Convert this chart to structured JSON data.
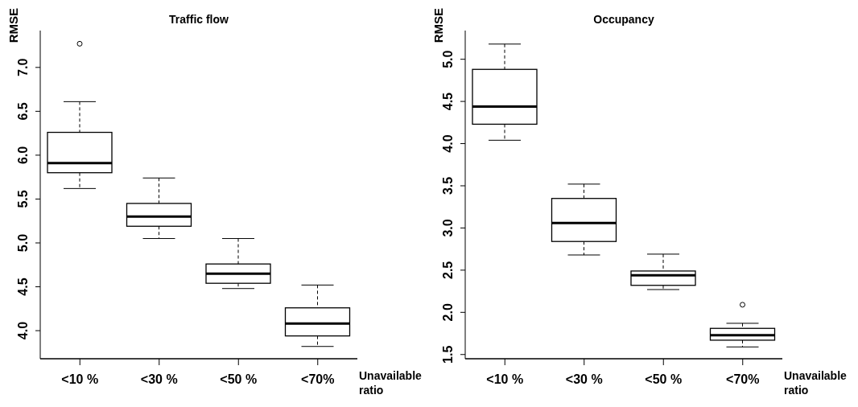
{
  "chart_data": [
    {
      "type": "box",
      "title": "Traffic flow",
      "ylabel": "RMSE",
      "xlabel": "Unavailable ratio",
      "categories": [
        "<10 %",
        "<30 %",
        "<50 %",
        "<70%"
      ],
      "boxes": [
        {
          "low": 5.62,
          "q1": 5.8,
          "median": 5.91,
          "q3": 6.26,
          "high": 6.61,
          "outliers": [
            7.27
          ]
        },
        {
          "low": 5.05,
          "q1": 5.19,
          "median": 5.3,
          "q3": 5.45,
          "high": 5.74
        },
        {
          "low": 4.48,
          "q1": 4.54,
          "median": 4.65,
          "q3": 4.76,
          "high": 5.05
        },
        {
          "low": 3.82,
          "q1": 3.94,
          "median": 4.08,
          "q3": 4.26,
          "high": 4.52
        }
      ],
      "ylim": [
        3.68,
        7.42
      ],
      "yticks": [
        {
          "value": 4,
          "label": "4.0"
        },
        {
          "value": 4.5,
          "label": "4.5"
        },
        {
          "value": 5,
          "label": "5.0"
        },
        {
          "value": 5.5,
          "label": "5.5"
        },
        {
          "value": 6,
          "label": "6.0"
        },
        {
          "value": 6.5,
          "label": "6.5"
        },
        {
          "value": 7,
          "label": "7.0"
        }
      ]
    },
    {
      "type": "box",
      "title": "Occupancy",
      "ylabel": "RMSE",
      "xlabel": "Unavailable ratio",
      "categories": [
        "<10 %",
        "<30 %",
        "<50 %",
        "<70%"
      ],
      "boxes": [
        {
          "low": 4.04,
          "q1": 4.23,
          "median": 4.44,
          "q3": 4.88,
          "high": 5.18
        },
        {
          "low": 2.68,
          "q1": 2.84,
          "median": 3.06,
          "q3": 3.35,
          "high": 3.52
        },
        {
          "low": 2.27,
          "q1": 2.32,
          "median": 2.44,
          "q3": 2.49,
          "high": 2.69
        },
        {
          "low": 1.59,
          "q1": 1.67,
          "median": 1.73,
          "q3": 1.81,
          "high": 1.87,
          "outliers": [
            2.09
          ]
        }
      ],
      "ylim": [
        1.45,
        5.34
      ],
      "yticks": [
        {
          "value": 1.5,
          "label": "1.5"
        },
        {
          "value": 2,
          "label": "2.0"
        },
        {
          "value": 2.5,
          "label": "2.5"
        },
        {
          "value": 3,
          "label": "3.0"
        },
        {
          "value": 3.5,
          "label": "3.5"
        },
        {
          "value": 4,
          "label": "4.0"
        },
        {
          "value": 4.5,
          "label": "4.5"
        },
        {
          "value": 5,
          "label": "5.0"
        }
      ]
    }
  ]
}
